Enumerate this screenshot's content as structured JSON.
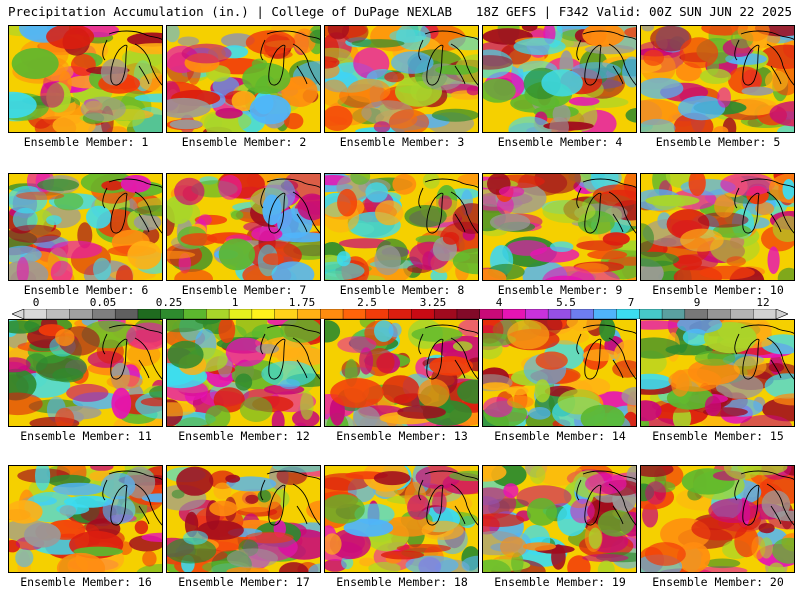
{
  "header": {
    "title": "Precipitation Accumulation (in.) | College of DuPage NEXLAB",
    "valid": "18Z GEFS | F342 Valid: 00Z SUN JUN 22 2025"
  },
  "panels": [
    {
      "label": "Ensemble Member: 1"
    },
    {
      "label": "Ensemble Member: 2"
    },
    {
      "label": "Ensemble Member: 3"
    },
    {
      "label": "Ensemble Member: 4"
    },
    {
      "label": "Ensemble Member: 5"
    },
    {
      "label": "Ensemble Member: 6"
    },
    {
      "label": "Ensemble Member: 7"
    },
    {
      "label": "Ensemble Member: 8"
    },
    {
      "label": "Ensemble Member: 9"
    },
    {
      "label": "Ensemble Member: 10"
    },
    {
      "label": "Ensemble Member: 11"
    },
    {
      "label": "Ensemble Member: 12"
    },
    {
      "label": "Ensemble Member: 13"
    },
    {
      "label": "Ensemble Member: 14"
    },
    {
      "label": "Ensemble Member: 15"
    },
    {
      "label": "Ensemble Member: 16"
    },
    {
      "label": "Ensemble Member: 17"
    },
    {
      "label": "Ensemble Member: 18"
    },
    {
      "label": "Ensemble Member: 19"
    },
    {
      "label": "Ensemble Member: 20"
    }
  ],
  "colorbar": {
    "labels": [
      "0",
      "0.05",
      "0.25",
      "1",
      "1.75",
      "2.5",
      "3.25",
      "4",
      "5.5",
      "7",
      "9",
      "12"
    ],
    "colors": [
      "#d9d9d9",
      "#bdbdbd",
      "#a0a0a0",
      "#7f7f7f",
      "#5f5f5f",
      "#1f6b1f",
      "#2e8b2e",
      "#5cb82e",
      "#a8d62a",
      "#e6f01e",
      "#fff21c",
      "#ffd21a",
      "#ffb014",
      "#ff8c0f",
      "#ff640a",
      "#f23c0a",
      "#dc1e0f",
      "#c80a14",
      "#a00a1e",
      "#820a28",
      "#c80a78",
      "#e614b4",
      "#c832dc",
      "#9650e6",
      "#6e7df0",
      "#50b4fa",
      "#3cdcf0",
      "#46c8c8",
      "#5aa0a0",
      "#787878",
      "#969696",
      "#b4b4b4",
      "#d2d2d2"
    ]
  },
  "map_colors": {
    "base": "#f5d000",
    "blobs": [
      "#a8d62a",
      "#5cb82e",
      "#2e8b2e",
      "#ffb014",
      "#ff8c0f",
      "#f23c0a",
      "#dc1e0f",
      "#a00a1e",
      "#c80a78",
      "#e614b4",
      "#50b4fa",
      "#3cdcf0",
      "#9a9a9a"
    ]
  }
}
